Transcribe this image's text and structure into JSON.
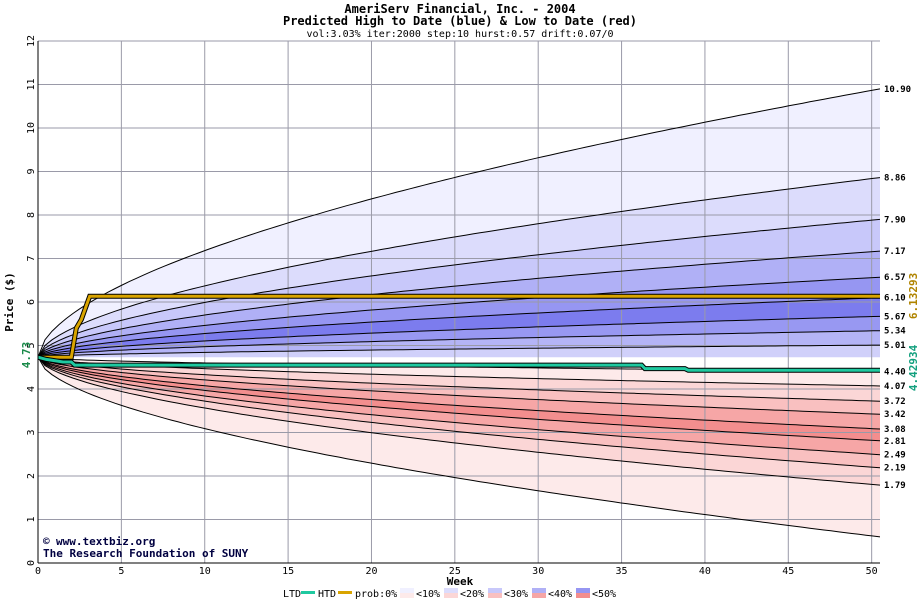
{
  "chart_data": {
    "type": "area",
    "title": "AmeriServ Financial, Inc. - 2004",
    "subtitle": "Predicted High to Date (blue) &  Low to Date (red)",
    "params": "vol:3.03% iter:2000 step:10 hurst:0.57 drift:0.07/0",
    "xlabel": "Week",
    "ylabel": "Price ($)",
    "xlim": [
      0,
      50.5
    ],
    "ylim": [
      0,
      12
    ],
    "x_ticks": [
      0,
      5,
      10,
      15,
      20,
      25,
      30,
      35,
      40,
      45,
      50
    ],
    "y_ticks": [
      0,
      1,
      2,
      3,
      4,
      5,
      6,
      7,
      8,
      9,
      10,
      11,
      12
    ],
    "grid": true,
    "start_price": 4.73,
    "start_label": "4.73",
    "high_bands": [
      {
        "end": 10.9,
        "label": "10.90",
        "color": "#f0f0ff"
      },
      {
        "end": 8.86,
        "label": "8.86",
        "color": "#dcdcfc"
      },
      {
        "end": 7.9,
        "label": "7.90",
        "color": "#c8c8fa"
      },
      {
        "end": 7.17,
        "label": "7.17",
        "color": "#b0b0f6"
      },
      {
        "end": 6.57,
        "label": "6.57",
        "color": "#9696f2"
      },
      {
        "end": 6.1,
        "label": "6.10",
        "color": "#7c7cee"
      },
      {
        "end": 5.67,
        "label": "5.67",
        "color": "#9898f2"
      },
      {
        "end": 5.34,
        "label": "5.34",
        "color": "#b4b4f6"
      },
      {
        "end": 5.01,
        "label": "5.01",
        "color": "#d0d0fa"
      }
    ],
    "low_bands": [
      {
        "end": 4.4,
        "label": "4.40",
        "color": "#fdeaea"
      },
      {
        "end": 4.07,
        "label": "4.07",
        "color": "#fbd6d6"
      },
      {
        "end": 3.72,
        "label": "3.72",
        "color": "#f9c0c0"
      },
      {
        "end": 3.42,
        "label": "3.42",
        "color": "#f6a6a6"
      },
      {
        "end": 3.08,
        "label": "3.08",
        "color": "#f38e8e"
      },
      {
        "end": 2.81,
        "label": "2.81",
        "color": "#f6a6a6"
      },
      {
        "end": 2.49,
        "label": "2.49",
        "color": "#f9c0c0"
      },
      {
        "end": 2.19,
        "label": "2.19",
        "color": "#fbd6d6"
      },
      {
        "end": 1.79,
        "label": "1.79",
        "color": "#fdeaea"
      }
    ],
    "outer_high_end": 10.9,
    "outer_low_end": 0.6,
    "actual_high": {
      "name": "HTD",
      "color": "#d9a400",
      "label": "6.13293",
      "points": [
        [
          0,
          4.73
        ],
        [
          2.0,
          4.73
        ],
        [
          2.3,
          5.4
        ],
        [
          2.6,
          5.6
        ],
        [
          3.1,
          6.13
        ],
        [
          50.5,
          6.13
        ]
      ]
    },
    "actual_low": {
      "name": "LTD",
      "color": "#1fc9a0",
      "label": "4.42934",
      "points": [
        [
          0,
          4.73
        ],
        [
          0.5,
          4.68
        ],
        [
          1.5,
          4.62
        ],
        [
          2.0,
          4.62
        ],
        [
          2.2,
          4.55
        ],
        [
          36.2,
          4.55
        ],
        [
          36.4,
          4.47
        ],
        [
          38.8,
          4.47
        ],
        [
          39.0,
          4.43
        ],
        [
          50.5,
          4.43
        ]
      ]
    }
  },
  "credit": {
    "symbol": "©",
    "site": "www.textbiz.org",
    "org": "The Research Foundation of SUNY"
  },
  "legend": {
    "ltd_label": "LTD",
    "ltd_color": "#1fc9a0",
    "htd_label": "HTD",
    "htd_color": "#d9a400",
    "prob_label": "prob:0%",
    "items": [
      {
        "label": "<10%",
        "colors": [
          "#f0f0ff",
          "#fdeaea"
        ]
      },
      {
        "label": "<20%",
        "colors": [
          "#dcdcfc",
          "#fbd6d6"
        ]
      },
      {
        "label": "<30%",
        "colors": [
          "#c8c8fa",
          "#f9c0c0"
        ]
      },
      {
        "label": "<40%",
        "colors": [
          "#b0b0f6",
          "#f6a6a6"
        ]
      },
      {
        "label": "<50%",
        "colors": [
          "#9696f2",
          "#f38e8e"
        ]
      }
    ]
  }
}
